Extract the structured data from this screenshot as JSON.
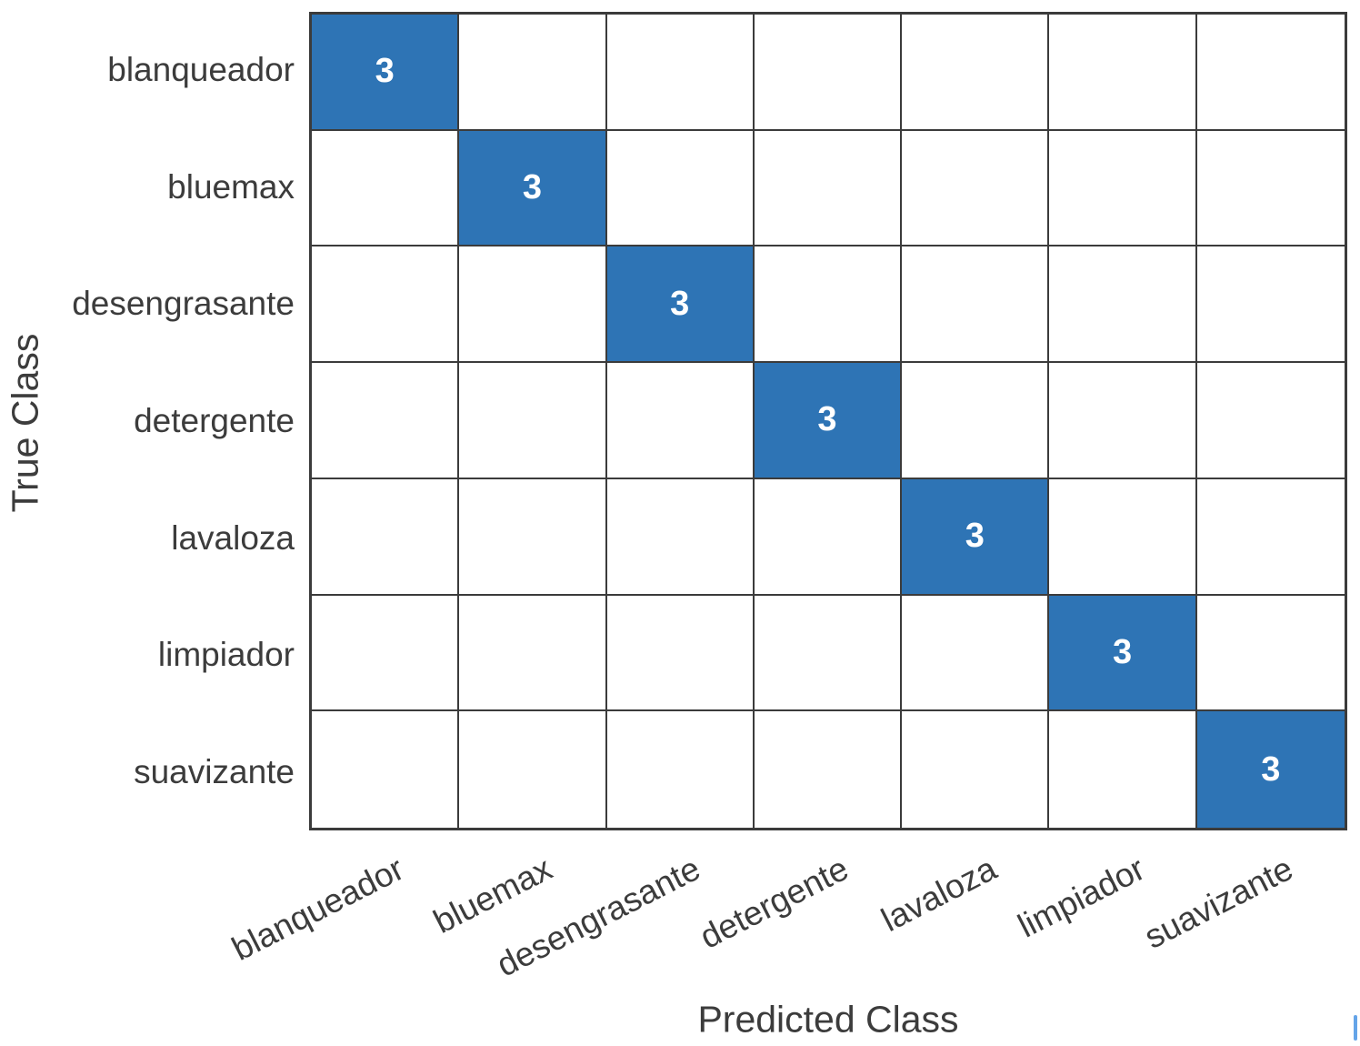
{
  "figure": {
    "xlabel": "Predicted Class",
    "ylabel": "True Class"
  },
  "chart_data": {
    "type": "heatmap",
    "subtype": "confusion-matrix",
    "title": "",
    "xlabel": "Predicted Class",
    "ylabel": "True Class",
    "x_categories": [
      "blanqueador",
      "bluemax",
      "desengrasante",
      "detergente",
      "lavaloza",
      "limpiador",
      "suavizante"
    ],
    "y_categories": [
      "blanqueador",
      "bluemax",
      "desengrasante",
      "detergente",
      "lavaloza",
      "limpiador",
      "suavizante"
    ],
    "matrix": [
      [
        3,
        0,
        0,
        0,
        0,
        0,
        0
      ],
      [
        0,
        3,
        0,
        0,
        0,
        0,
        0
      ],
      [
        0,
        0,
        3,
        0,
        0,
        0,
        0
      ],
      [
        0,
        0,
        0,
        3,
        0,
        0,
        0
      ],
      [
        0,
        0,
        0,
        0,
        3,
        0,
        0
      ],
      [
        0,
        0,
        0,
        0,
        0,
        3,
        0
      ],
      [
        0,
        0,
        0,
        0,
        0,
        0,
        3
      ]
    ],
    "zero_cells_shown_blank": true,
    "grid": true,
    "legend_position": "none",
    "colors": {
      "diagonal_fill": "#2E74B5",
      "cell_value_text": "#FFFFFF",
      "empty_cell_fill": "#FFFFFF",
      "grid_line": "#3B3B3B",
      "label_text": "#3C3C3C",
      "artifact_marker": "#64A4E8"
    }
  }
}
